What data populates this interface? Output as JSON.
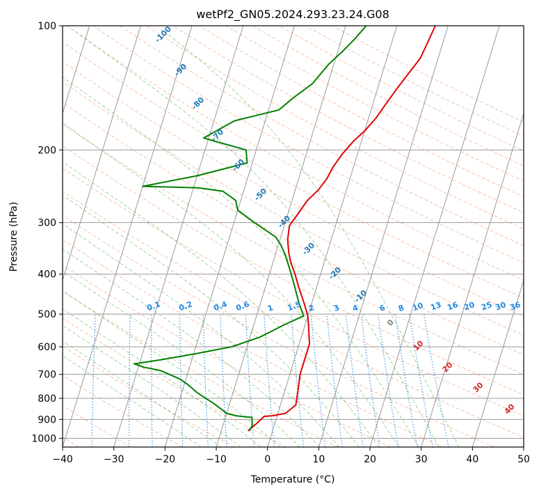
{
  "chart_data": {
    "type": "line",
    "title": "wetPf2_GN05.2024.293.23.24.G08",
    "xlabel": "Temperature (°C)",
    "ylabel": "Pressure (hPa)",
    "xlim": [
      -40,
      50
    ],
    "ylim": [
      1050,
      100
    ],
    "y_scale": "log",
    "x_ticks": [
      -40,
      -30,
      -20,
      -10,
      0,
      10,
      20,
      30,
      40,
      50
    ],
    "y_ticks": [
      100,
      200,
      300,
      400,
      500,
      600,
      700,
      800,
      900,
      1000
    ],
    "grid": true,
    "legend": "none",
    "colors": {
      "temperature": "#e00000",
      "dewpoint": "#008000",
      "isotherm_grid": "#999999",
      "dry_adiabat": "#f4a582",
      "moist_adiabat": "#2ca02c",
      "mixing_ratio": "#1e88e5",
      "dry_adiabat_label": "#d62728",
      "moist_adiabat_label": "#1f77b4"
    },
    "series": [
      {
        "points": [
          [
            -4.8,
            960
          ],
          [
            -3.5,
            920
          ],
          [
            -2.5,
            885
          ],
          [
            -1,
            882
          ],
          [
            1.5,
            870
          ],
          [
            3,
            830
          ],
          [
            2.5,
            760
          ],
          [
            2,
            700
          ],
          [
            2,
            640
          ],
          [
            2,
            590
          ],
          [
            1,
            545
          ],
          [
            0,
            505
          ],
          [
            -1.5,
            470
          ],
          [
            -3.5,
            430
          ],
          [
            -5,
            400
          ],
          [
            -6.5,
            375
          ],
          [
            -7.5,
            355
          ],
          [
            -8.5,
            330
          ],
          [
            -9,
            305
          ],
          [
            -8,
            285
          ],
          [
            -7,
            265
          ],
          [
            -5.5,
            250
          ],
          [
            -4.5,
            235
          ],
          [
            -4,
            220
          ],
          [
            -3,
            205
          ],
          [
            -1.5,
            190
          ],
          [
            0,
            180
          ],
          [
            1.5,
            167
          ],
          [
            2.5,
            155
          ],
          [
            4,
            140
          ],
          [
            6.5,
            120
          ],
          [
            7,
            110
          ],
          [
            7.5,
            100
          ]
        ]
      },
      {
        "points": [
          [
            -4.5,
            960
          ],
          [
            -4.3,
            930
          ],
          [
            -4.8,
            890
          ],
          [
            -8,
            882
          ],
          [
            -10,
            870
          ],
          [
            -13,
            825
          ],
          [
            -17,
            775
          ],
          [
            -19,
            745
          ],
          [
            -21,
            720
          ],
          [
            -23.5,
            700
          ],
          [
            -25.5,
            685
          ],
          [
            -29,
            672
          ],
          [
            -31,
            660
          ],
          [
            -26,
            645
          ],
          [
            -20,
            625
          ],
          [
            -13,
            600
          ],
          [
            -8,
            568
          ],
          [
            -4,
            530
          ],
          [
            -0.8,
            505
          ],
          [
            -2.5,
            470
          ],
          [
            -4.5,
            425
          ],
          [
            -6,
            395
          ],
          [
            -8,
            360
          ],
          [
            -9.5,
            340
          ],
          [
            -11,
            325
          ],
          [
            -16,
            300
          ],
          [
            -20,
            280
          ],
          [
            -21,
            265
          ],
          [
            -24,
            252
          ],
          [
            -29,
            247
          ],
          [
            -40,
            245
          ],
          [
            -30,
            231
          ],
          [
            -21,
            215
          ],
          [
            -22,
            200
          ],
          [
            -29,
            190
          ],
          [
            -31,
            187
          ],
          [
            -26,
            170
          ],
          [
            -18,
            160
          ],
          [
            -16,
            150
          ],
          [
            -13,
            138
          ],
          [
            -11,
            124
          ],
          [
            -9,
            115
          ],
          [
            -7.5,
            108
          ],
          [
            -6,
            100
          ]
        ]
      }
    ],
    "isopleth_labels": {
      "dry_adiabats": [
        "0",
        "10",
        "20",
        "30",
        "40"
      ],
      "moist_adiabats": [
        "-100",
        "-90",
        "-80",
        "-70",
        "-60",
        "-50",
        "-40",
        "-30",
        "-20",
        "-10"
      ],
      "mixing_ratios": [
        "0.1",
        "0.2",
        "0.4",
        "0.6",
        "1",
        "1.5",
        "2",
        "3",
        "4",
        "6",
        "8",
        "10",
        "13",
        "16",
        "20",
        "25",
        "30",
        "36"
      ]
    }
  }
}
